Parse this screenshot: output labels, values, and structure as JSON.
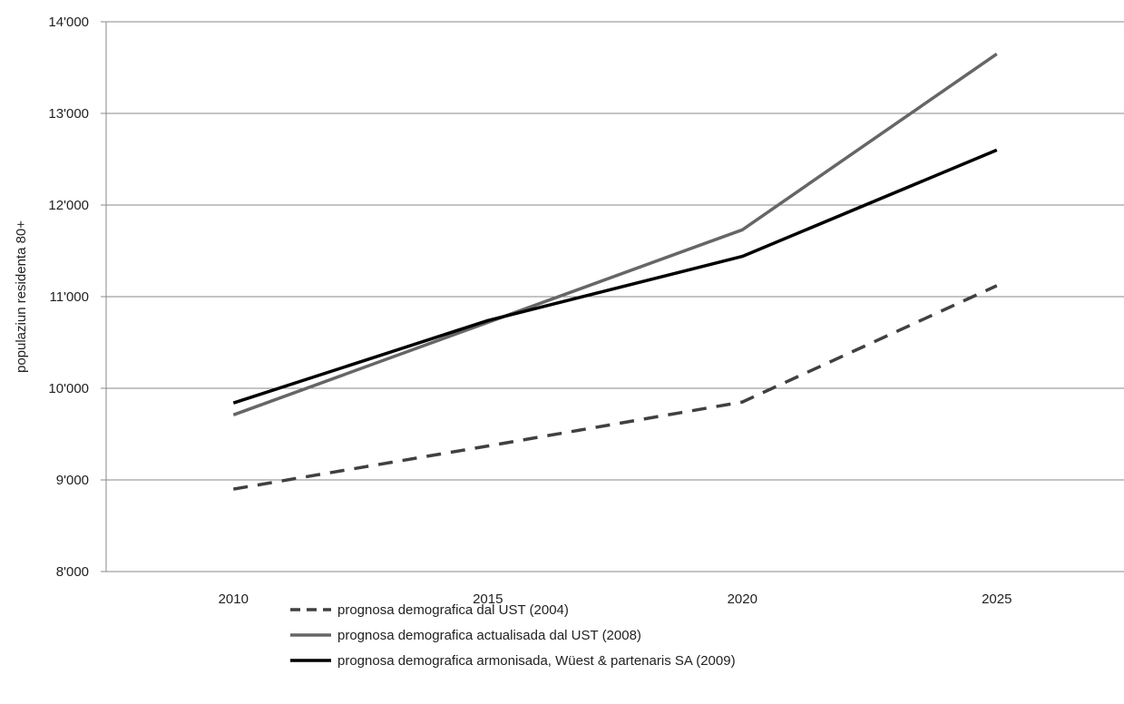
{
  "chart_data": {
    "type": "line",
    "title": "",
    "xlabel": "",
    "ylabel": "populaziun residenta 80+",
    "categories": [
      "2010",
      "2015",
      "2020",
      "2025"
    ],
    "ylim": [
      8000,
      14000
    ],
    "yticks": [
      8000,
      9000,
      10000,
      11000,
      12000,
      13000,
      14000
    ],
    "ytick_labels": [
      "8'000",
      "9'000",
      "10'000",
      "11'000",
      "12'000",
      "13'000",
      "14'000"
    ],
    "grid": true,
    "legend_position": "bottom",
    "series": [
      {
        "name": "prognosa demografica dal UST (2004)",
        "values": [
          8900,
          9370,
          9850,
          11120
        ],
        "color": "#404040",
        "dash": true
      },
      {
        "name": "prognosa demografica actualisada dal UST (2008)",
        "values": [
          9710,
          10720,
          11730,
          13650
        ],
        "color": "#666666",
        "dash": false
      },
      {
        "name": "prognosa demografica armonisada, Wüest & partenaris SA (2009)",
        "values": [
          9840,
          10740,
          11440,
          12600
        ],
        "color": "#000000",
        "dash": false
      }
    ]
  }
}
